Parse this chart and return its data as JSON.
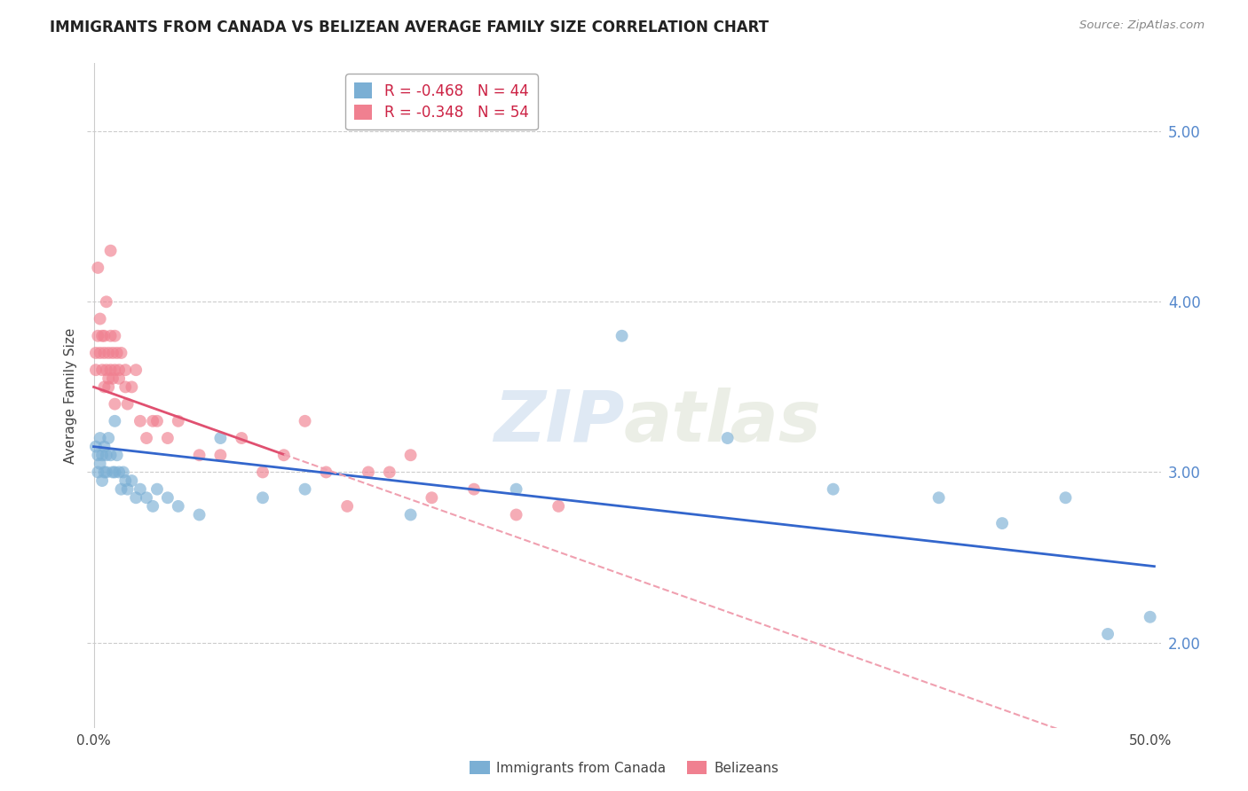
{
  "title": "IMMIGRANTS FROM CANADA VS BELIZEAN AVERAGE FAMILY SIZE CORRELATION CHART",
  "source": "Source: ZipAtlas.com",
  "ylabel": "Average Family Size",
  "yticks": [
    2.0,
    3.0,
    4.0,
    5.0
  ],
  "ylim": [
    1.5,
    5.4
  ],
  "xlim": [
    -0.003,
    0.505
  ],
  "legend_entries": [
    {
      "label": "R = -0.468   N = 44",
      "color": "#aac4e8"
    },
    {
      "label": "R = -0.348   N = 54",
      "color": "#f5a0b0"
    }
  ],
  "canada_x": [
    0.001,
    0.002,
    0.002,
    0.003,
    0.003,
    0.004,
    0.004,
    0.005,
    0.005,
    0.006,
    0.006,
    0.007,
    0.008,
    0.009,
    0.01,
    0.01,
    0.011,
    0.012,
    0.013,
    0.014,
    0.015,
    0.016,
    0.018,
    0.02,
    0.022,
    0.025,
    0.028,
    0.03,
    0.035,
    0.04,
    0.05,
    0.06,
    0.08,
    0.1,
    0.15,
    0.2,
    0.25,
    0.3,
    0.35,
    0.4,
    0.43,
    0.46,
    0.48,
    0.5
  ],
  "canada_y": [
    3.15,
    3.1,
    3.0,
    3.2,
    3.05,
    3.1,
    2.95,
    3.15,
    3.0,
    3.1,
    3.0,
    3.2,
    3.1,
    3.0,
    3.3,
    3.0,
    3.1,
    3.0,
    2.9,
    3.0,
    2.95,
    2.9,
    2.95,
    2.85,
    2.9,
    2.85,
    2.8,
    2.9,
    2.85,
    2.8,
    2.75,
    3.2,
    2.85,
    2.9,
    2.75,
    2.9,
    3.8,
    3.2,
    2.9,
    2.85,
    2.7,
    2.85,
    2.05,
    2.15
  ],
  "belize_x": [
    0.001,
    0.001,
    0.002,
    0.002,
    0.003,
    0.003,
    0.004,
    0.004,
    0.005,
    0.005,
    0.006,
    0.006,
    0.007,
    0.007,
    0.008,
    0.008,
    0.009,
    0.01,
    0.01,
    0.011,
    0.012,
    0.013,
    0.015,
    0.015,
    0.016,
    0.018,
    0.02,
    0.022,
    0.025,
    0.028,
    0.03,
    0.035,
    0.04,
    0.05,
    0.06,
    0.07,
    0.08,
    0.09,
    0.1,
    0.11,
    0.12,
    0.13,
    0.14,
    0.15,
    0.16,
    0.18,
    0.2,
    0.22,
    0.005,
    0.007,
    0.008,
    0.009,
    0.01,
    0.012
  ],
  "belize_y": [
    3.6,
    3.7,
    3.8,
    4.2,
    3.7,
    3.9,
    3.6,
    3.8,
    3.7,
    3.8,
    3.6,
    4.0,
    3.7,
    3.5,
    3.6,
    3.8,
    3.7,
    3.6,
    3.8,
    3.7,
    3.6,
    3.7,
    3.5,
    3.6,
    3.4,
    3.5,
    3.6,
    3.3,
    3.2,
    3.3,
    3.3,
    3.2,
    3.3,
    3.1,
    3.1,
    3.2,
    3.0,
    3.1,
    3.3,
    3.0,
    2.8,
    3.0,
    3.0,
    3.1,
    2.85,
    2.9,
    2.75,
    2.8,
    3.5,
    3.55,
    4.3,
    3.55,
    3.4,
    3.55
  ],
  "canada_color": "#7bafd4",
  "belize_color": "#f08090",
  "canada_line_color": "#3366cc",
  "belize_line_color": "#e05070",
  "belize_dashed_color": "#f0a0b0",
  "watermark_zip": "ZIP",
  "watermark_atlas": "atlas",
  "background_color": "#ffffff",
  "grid_color": "#cccccc"
}
